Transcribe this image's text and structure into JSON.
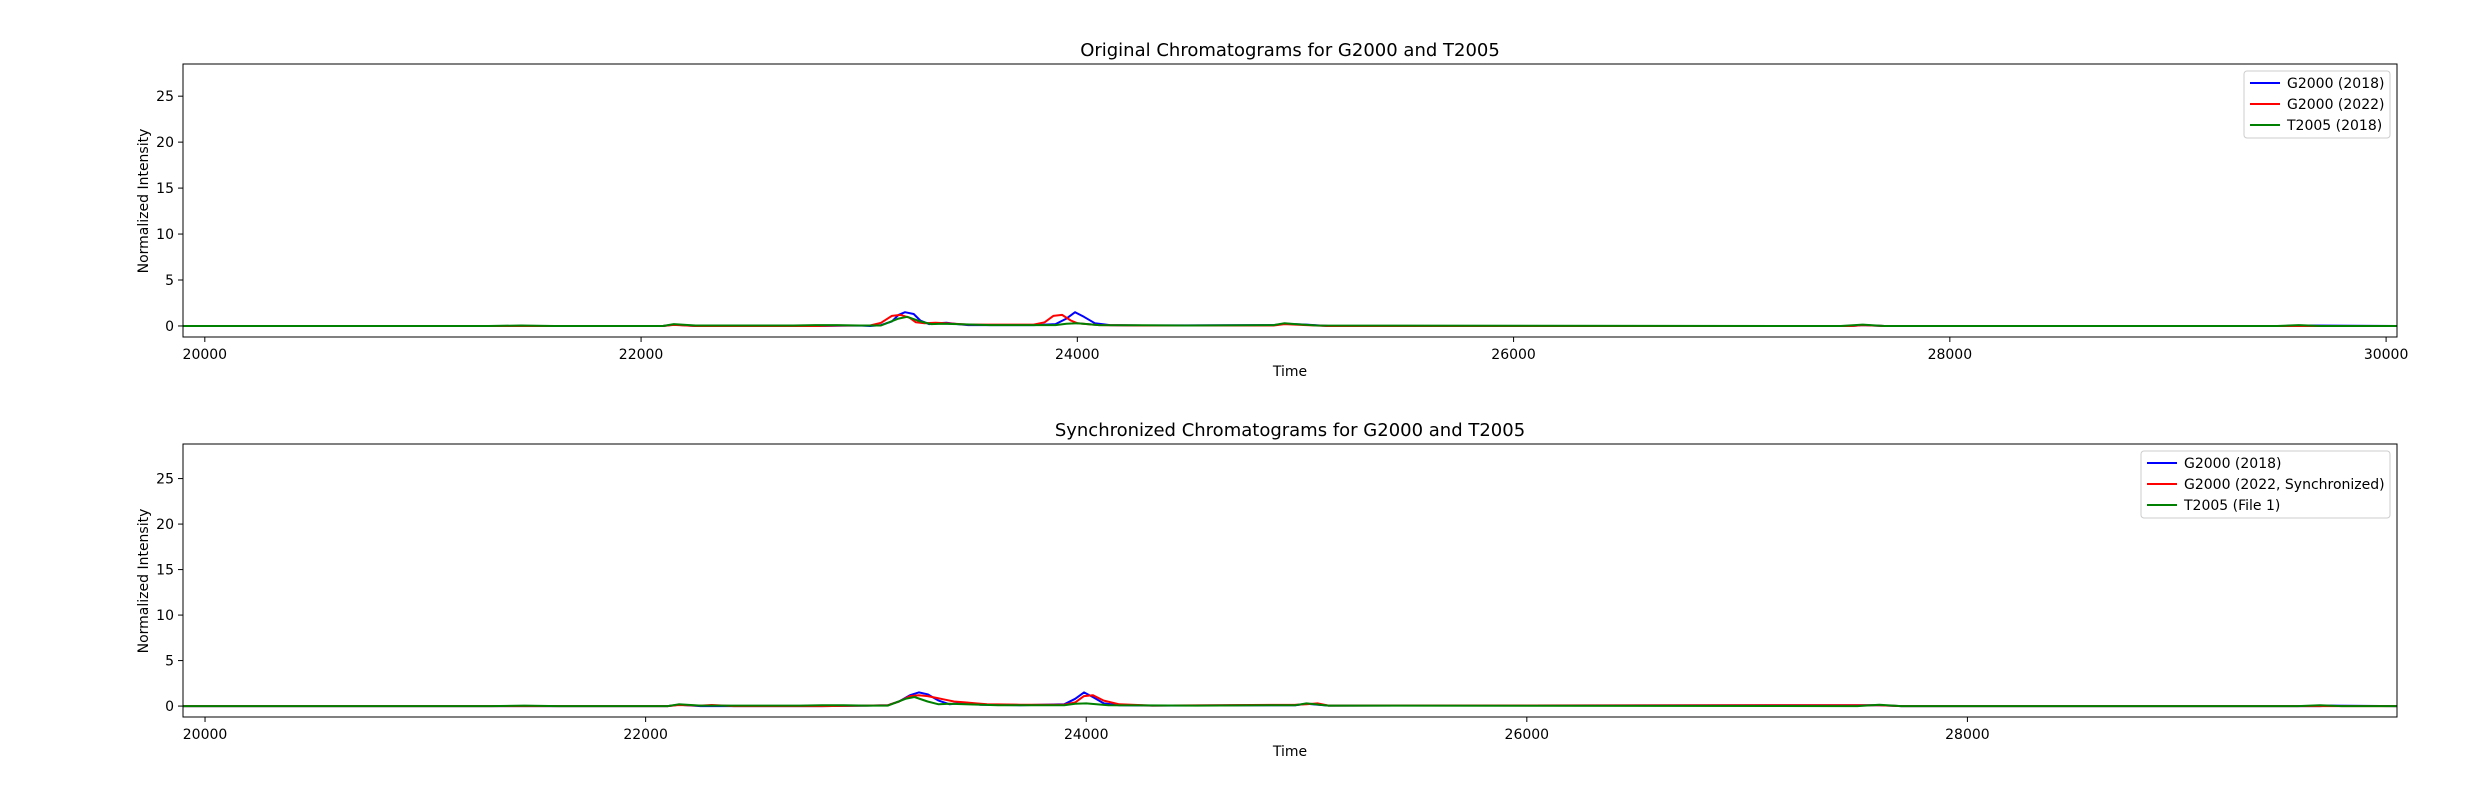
{
  "chart_data": [
    {
      "type": "line",
      "title": "Original Chromatograms for G2000 and T2005",
      "xlabel": "Time",
      "ylabel": "Normalized Intensity",
      "xlim": [
        19900,
        30050
      ],
      "ylim": [
        -1.2,
        28.5
      ],
      "xticks": [
        20000,
        22000,
        24000,
        26000,
        28000,
        30000
      ],
      "yticks": [
        0,
        5,
        10,
        15,
        20,
        25
      ],
      "legend_position": "upper right",
      "grid": false,
      "series": [
        {
          "name": "G2000 (2018)",
          "color": "#0000ff",
          "x": [
            19900,
            21400,
            21600,
            22100,
            22150,
            22250,
            22800,
            23000,
            23050,
            23100,
            23150,
            23180,
            23210,
            23250,
            23280,
            23320,
            23360,
            23400,
            23450,
            23500,
            23800,
            23900,
            23950,
            23990,
            24030,
            24080,
            24150,
            24300,
            24900,
            24950,
            25050,
            25150,
            27550,
            27600,
            27700,
            29600,
            29650,
            30050
          ],
          "values": [
            0,
            0,
            0,
            0,
            0.15,
            0,
            0,
            0.05,
            0,
            0.1,
            0.5,
            1.2,
            1.5,
            1.3,
            0.6,
            0.2,
            0.3,
            0.35,
            0.2,
            0.1,
            0.1,
            0.2,
            0.8,
            1.5,
            1.0,
            0.3,
            0.1,
            0.05,
            0.1,
            0.25,
            0.15,
            0,
            0,
            0.1,
            0,
            0,
            0.05,
            0
          ]
        },
        {
          "name": "G2000 (2022)",
          "color": "#ff0000",
          "x": [
            19900,
            21400,
            22100,
            22150,
            22250,
            22800,
            22900,
            23000,
            23050,
            23100,
            23150,
            23190,
            23230,
            23260,
            23300,
            23350,
            23400,
            23500,
            23700,
            23800,
            23850,
            23890,
            23930,
            23970,
            24000,
            24100,
            24300,
            24900,
            24950,
            25050,
            25150,
            27550,
            27600,
            27700,
            30050
          ],
          "values": [
            0,
            0,
            0,
            0.12,
            0,
            0,
            0.05,
            0.05,
            0.05,
            0.35,
            1.1,
            1.2,
            0.9,
            0.4,
            0.3,
            0.35,
            0.3,
            0.15,
            0.15,
            0.15,
            0.4,
            1.1,
            1.2,
            0.6,
            0.3,
            0.1,
            0.05,
            0.05,
            0.2,
            0.1,
            0,
            0,
            0.1,
            0,
            0
          ]
        },
        {
          "name": "T2005 (2018)",
          "color": "#008000",
          "x": [
            19900,
            21300,
            21450,
            21600,
            22100,
            22150,
            22250,
            22700,
            22800,
            22900,
            23000,
            23100,
            23180,
            23220,
            23280,
            23330,
            23380,
            23450,
            23600,
            23900,
            23950,
            24000,
            24100,
            24500,
            24900,
            24950,
            25000,
            25100,
            27500,
            27600,
            27700,
            29500,
            29600,
            29700,
            30050
          ],
          "values": [
            0,
            0,
            0.05,
            0,
            0,
            0.2,
            0.05,
            0.05,
            0.1,
            0.1,
            0.05,
            0.05,
            0.8,
            1.0,
            0.5,
            0.2,
            0.25,
            0.2,
            0.1,
            0.1,
            0.25,
            0.3,
            0.1,
            0.05,
            0.1,
            0.3,
            0.2,
            0.05,
            0,
            0.15,
            0,
            0,
            0.1,
            0,
            0
          ]
        }
      ]
    },
    {
      "type": "line",
      "title": "Synchronized Chromatograms for G2000 and T2005",
      "xlabel": "Time",
      "ylabel": "Normalized Intensity",
      "xlim": [
        19900,
        29950
      ],
      "ylim": [
        -1.2,
        28.8
      ],
      "xticks": [
        20000,
        22000,
        24000,
        26000,
        28000
      ],
      "yticks": [
        0,
        5,
        10,
        15,
        20,
        25
      ],
      "legend_position": "upper right",
      "grid": false,
      "series": [
        {
          "name": "G2000 (2018)",
          "color": "#0000ff",
          "x": [
            19900,
            21400,
            21600,
            22100,
            22150,
            22250,
            22800,
            23000,
            23100,
            23150,
            23200,
            23240,
            23280,
            23330,
            23380,
            23420,
            23460,
            23520,
            23700,
            23900,
            23950,
            23990,
            24030,
            24080,
            24150,
            24300,
            24950,
            25000,
            25100,
            27600,
            27700,
            29600,
            29650,
            29950
          ],
          "values": [
            0,
            0,
            0,
            0,
            0.15,
            0,
            0,
            0.05,
            0.1,
            0.5,
            1.2,
            1.5,
            1.3,
            0.6,
            0.2,
            0.3,
            0.35,
            0.15,
            0.1,
            0.2,
            0.8,
            1.5,
            1.0,
            0.3,
            0.1,
            0.05,
            0.1,
            0.25,
            0.05,
            0.1,
            0,
            0,
            0.05,
            0
          ]
        },
        {
          "name": "G2000 (2022, Synchronized)",
          "color": "#ff0000",
          "x": [
            19900,
            22100,
            22150,
            22250,
            22300,
            22400,
            22800,
            23000,
            23100,
            23150,
            23200,
            23240,
            23280,
            23320,
            23360,
            23400,
            23450,
            23500,
            23550,
            23700,
            23900,
            23950,
            23990,
            24030,
            24080,
            24150,
            24300,
            24950,
            25000,
            25050,
            25100,
            27600,
            27700,
            29950
          ],
          "values": [
            0,
            0,
            0.12,
            0.05,
            0.12,
            0,
            0,
            0.05,
            0.1,
            0.5,
            1.1,
            1.2,
            1.1,
            0.9,
            0.7,
            0.5,
            0.4,
            0.3,
            0.2,
            0.15,
            0.15,
            0.4,
            1.1,
            1.2,
            0.6,
            0.2,
            0.05,
            0.15,
            0.2,
            0.3,
            0.05,
            0.1,
            0,
            0
          ]
        },
        {
          "name": "T2005 (File 1)",
          "color": "#008000",
          "x": [
            19900,
            21300,
            21450,
            21600,
            22100,
            22150,
            22250,
            22700,
            22800,
            22900,
            23000,
            23100,
            23180,
            23220,
            23280,
            23330,
            23380,
            23450,
            23600,
            23900,
            23950,
            24000,
            24100,
            24500,
            24950,
            25000,
            25100,
            27500,
            27600,
            27700,
            29500,
            29600,
            29700,
            29950
          ],
          "values": [
            0,
            0,
            0.05,
            0,
            0,
            0.2,
            0.05,
            0.05,
            0.1,
            0.1,
            0.05,
            0.05,
            0.8,
            1.0,
            0.5,
            0.2,
            0.25,
            0.2,
            0.1,
            0.1,
            0.25,
            0.3,
            0.1,
            0.05,
            0.1,
            0.3,
            0.05,
            0,
            0.15,
            0,
            0,
            0.1,
            0,
            0
          ]
        }
      ]
    }
  ]
}
